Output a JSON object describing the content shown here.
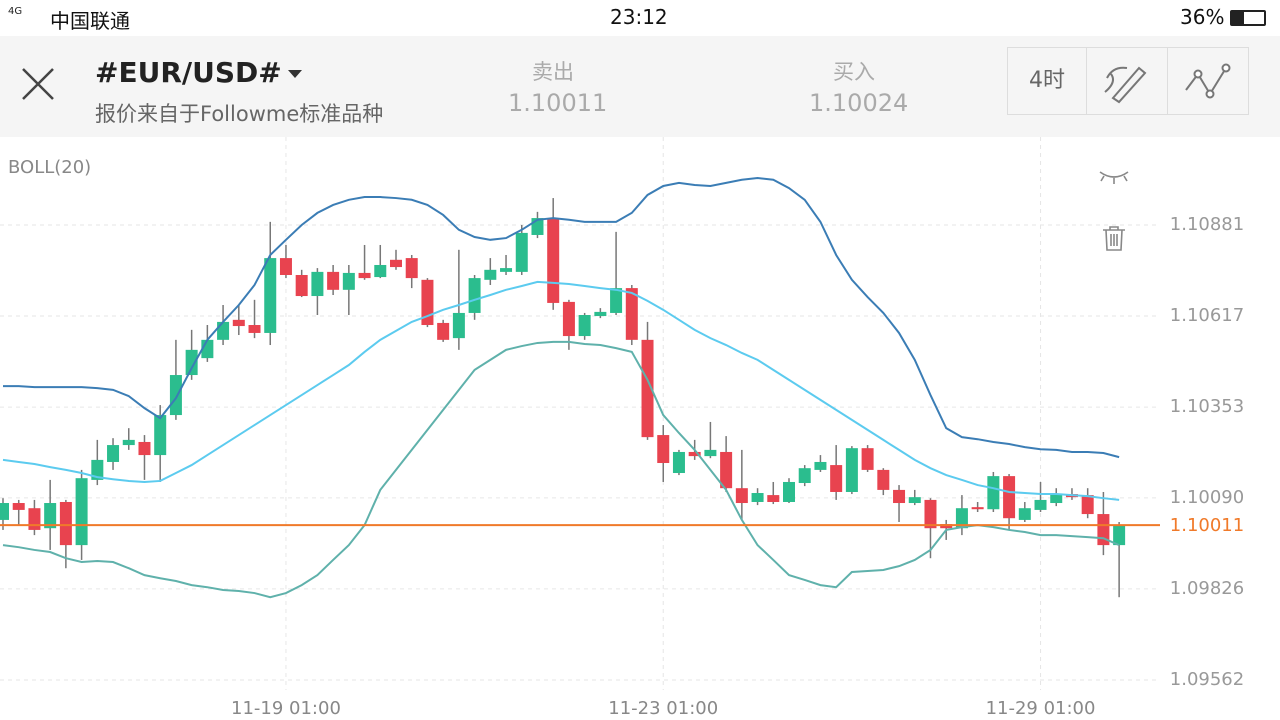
{
  "status": {
    "network": "4G",
    "carrier": "中国联通",
    "time": "23:12",
    "battery": "36%"
  },
  "header": {
    "symbol": "#EUR/USD#",
    "subtitle": "报价来自于Followme标准品种",
    "bid_label": "卖出",
    "bid": "1.10011",
    "ask_label": "买入",
    "ask": "1.10024",
    "timeframe": "4时"
  },
  "chart_data": {
    "type": "candlestick",
    "indicator": "BOLL(20)",
    "categories": [
      null,
      null,
      null,
      null,
      null,
      null,
      null,
      null,
      null,
      null,
      null,
      null,
      null,
      null,
      null,
      null,
      null,
      null,
      "11-19 01:00",
      null,
      null,
      null,
      null,
      null,
      null,
      null,
      null,
      null,
      null,
      null,
      null,
      null,
      null,
      null,
      null,
      null,
      null,
      null,
      null,
      null,
      null,
      null,
      "11-23 01:00",
      null,
      null,
      null,
      null,
      null,
      null,
      null,
      null,
      null,
      null,
      null,
      null,
      null,
      null,
      null,
      null,
      null,
      null,
      null,
      null,
      null,
      null,
      null,
      "11-29 01:00",
      null,
      null,
      null,
      null,
      null
    ],
    "open": [
      1.10026,
      1.10075,
      1.1006,
      1.10002,
      1.10078,
      1.09953,
      1.10142,
      1.10194,
      1.10243,
      1.10252,
      1.10214,
      1.1033,
      1.10446,
      1.10495,
      1.10548,
      1.10606,
      1.10591,
      1.10568,
      1.10785,
      1.10736,
      1.10675,
      1.10745,
      1.10693,
      1.10742,
      1.1073,
      1.1078,
      1.10785,
      1.10722,
      1.10597,
      1.10553,
      1.10626,
      1.10722,
      1.10745,
      1.10745,
      1.10852,
      1.10901,
      1.10658,
      1.10559,
      1.10617,
      1.10626,
      1.10698,
      1.10548,
      1.10272,
      1.10162,
      1.10223,
      1.10211,
      1.10223,
      1.10118,
      1.10078,
      1.10098,
      1.10078,
      1.10133,
      1.10171,
      1.10185,
      1.10107,
      1.10234,
      1.10171,
      1.10113,
      1.10075,
      1.10084,
      1.10014,
      1.10002,
      1.10063,
      1.10057,
      1.10153,
      1.10026,
      1.10055,
      1.10075,
      1.10101,
      1.10098,
      1.10043,
      1.09953
    ],
    "high": [
      1.10089,
      1.10084,
      1.10084,
      1.10142,
      1.10084,
      1.10171,
      1.10258,
      1.10263,
      1.10292,
      1.10272,
      1.10359,
      1.10548,
      1.10577,
      1.10591,
      1.10649,
      1.10649,
      1.10664,
      1.1089,
      1.10823,
      1.10751,
      1.10756,
      1.10765,
      1.10765,
      1.10823,
      1.10823,
      1.10809,
      1.10794,
      1.10727,
      1.10606,
      1.10809,
      1.10736,
      1.10785,
      1.10794,
      1.10881,
      1.10919,
      1.10959,
      1.10664,
      1.10626,
      1.1064,
      1.10861,
      1.10707,
      1.106,
      1.10301,
      1.10229,
      1.10258,
      1.1031,
      1.10269,
      1.10229,
      1.10118,
      1.10136,
      1.10147,
      1.10185,
      1.10214,
      1.10243,
      1.1024,
      1.10243,
      1.10176,
      1.10127,
      1.10113,
      1.10089,
      1.10026,
      1.10098,
      1.10078,
      1.10165,
      1.10159,
      1.10078,
      1.10136,
      1.10118,
      1.10118,
      1.10118,
      1.10107,
      1.1002
    ],
    "low": [
      1.09997,
      1.10011,
      1.09982,
      1.09939,
      1.09886,
      1.0991,
      1.10127,
      1.10171,
      1.10229,
      1.10142,
      1.10136,
      1.10316,
      1.10432,
      1.10484,
      1.10533,
      1.10562,
      1.10553,
      1.10533,
      1.10727,
      1.10672,
      1.1062,
      1.10678,
      1.1062,
      1.10722,
      1.10727,
      1.10751,
      1.10698,
      1.10585,
      1.10542,
      1.10519,
      1.10606,
      1.10707,
      1.10736,
      1.10736,
      1.10843,
      1.10635,
      1.10519,
      1.10548,
      1.10611,
      1.1062,
      1.10533,
      1.10258,
      1.10136,
      1.10156,
      1.102,
      1.10205,
      1.10107,
      1.10026,
      1.10069,
      1.10072,
      1.10075,
      1.10124,
      1.10165,
      1.10084,
      1.10101,
      1.10165,
      1.10098,
      1.1002,
      1.10069,
      1.09915,
      1.09968,
      1.09982,
      1.10049,
      1.10049,
      1.09997,
      1.1002,
      1.10049,
      1.10066,
      1.10084,
      1.10031,
      1.09924,
      1.09802
    ],
    "close": [
      1.10075,
      1.10055,
      1.09997,
      1.10075,
      1.09953,
      1.10147,
      1.102,
      1.10243,
      1.10258,
      1.10214,
      1.1033,
      1.10446,
      1.10519,
      1.10548,
      1.106,
      1.10588,
      1.10568,
      1.10785,
      1.10736,
      1.10675,
      1.10745,
      1.10693,
      1.10742,
      1.10727,
      1.10765,
      1.10759,
      1.10727,
      1.10591,
      1.10548,
      1.10626,
      1.10727,
      1.10751,
      1.10756,
      1.10858,
      1.10901,
      1.10655,
      1.10559,
      1.1062,
      1.10629,
      1.10698,
      1.10548,
      1.10266,
      1.10191,
      1.10223,
      1.10211,
      1.10229,
      1.10118,
      1.10075,
      1.10104,
      1.10078,
      1.10136,
      1.10176,
      1.10194,
      1.10107,
      1.10234,
      1.10171,
      1.10113,
      1.10075,
      1.10092,
      1.10002,
      1.10002,
      1.1006,
      1.10057,
      1.10153,
      1.10031,
      1.1006,
      1.10084,
      1.10101,
      1.10092,
      1.10043,
      1.09953,
      1.10011
    ],
    "up_color": "#2bbd8e",
    "down_color": "#e8434f",
    "series": [
      {
        "color": "#3b7db5",
        "values": [
          1.10414,
          1.10414,
          1.10411,
          1.10411,
          1.10411,
          1.10411,
          1.10408,
          1.10403,
          1.10385,
          1.1035,
          1.10321,
          1.10379,
          1.10466,
          1.10548,
          1.106,
          1.10649,
          1.10707,
          1.10794,
          1.10838,
          1.10881,
          1.10916,
          1.10939,
          1.10954,
          1.10962,
          1.10962,
          1.10959,
          1.10954,
          1.10939,
          1.1091,
          1.10867,
          1.10846,
          1.10838,
          1.10843,
          1.10867,
          1.10896,
          1.10901,
          1.10896,
          1.1089,
          1.1089,
          1.1089,
          1.10916,
          1.10968,
          1.10994,
          1.11003,
          1.10997,
          1.10994,
          1.11003,
          1.11012,
          1.11017,
          1.11012,
          1.10988,
          1.10954,
          1.1089,
          1.10794,
          1.10722,
          1.10672,
          1.10626,
          1.10568,
          1.1049,
          1.10388,
          1.10292,
          1.10266,
          1.1026,
          1.10252,
          1.10246,
          1.10237,
          1.10231,
          1.10229,
          1.10223,
          1.10223,
          1.1022,
          1.10208
        ]
      },
      {
        "color": "#5ccbef",
        "values": [
          1.102,
          1.10194,
          1.10188,
          1.10179,
          1.10171,
          1.10162,
          1.1015,
          1.10144,
          1.10139,
          1.10136,
          1.10139,
          1.10162,
          1.10185,
          1.10214,
          1.10243,
          1.10272,
          1.10301,
          1.1033,
          1.10359,
          1.10388,
          1.10417,
          1.10446,
          1.10475,
          1.10513,
          1.10548,
          1.10574,
          1.106,
          1.10617,
          1.10635,
          1.10649,
          1.10664,
          1.10678,
          1.10693,
          1.10704,
          1.10716,
          1.10713,
          1.1071,
          1.10704,
          1.10698,
          1.10693,
          1.10684,
          1.10661,
          1.10635,
          1.10606,
          1.10577,
          1.10553,
          1.10533,
          1.1051,
          1.1049,
          1.10461,
          1.10432,
          1.10403,
          1.10374,
          1.10345,
          1.10316,
          1.10287,
          1.10258,
          1.10229,
          1.102,
          1.10176,
          1.10156,
          1.10142,
          1.10127,
          1.10118,
          1.10107,
          1.10104,
          1.10101,
          1.10101,
          1.10098,
          1.10095,
          1.10089,
          1.10084
        ]
      },
      {
        "color": "#5fb1ab",
        "values": [
          1.09953,
          1.09947,
          1.09939,
          1.09933,
          1.09915,
          1.09904,
          1.09907,
          1.09904,
          1.09886,
          1.09866,
          1.09857,
          1.09849,
          1.09837,
          1.09831,
          1.09823,
          1.0982,
          1.09814,
          1.09802,
          1.09814,
          1.09837,
          1.09866,
          1.0991,
          1.09953,
          1.10011,
          1.10113,
          1.10171,
          1.10229,
          1.10287,
          1.10345,
          1.10403,
          1.10461,
          1.1049,
          1.10519,
          1.1053,
          1.10539,
          1.10542,
          1.10542,
          1.10536,
          1.10533,
          1.10524,
          1.10513,
          1.10432,
          1.1033,
          1.10278,
          1.10229,
          1.10171,
          1.10113,
          1.10026,
          1.09953,
          1.0991,
          1.09866,
          1.09852,
          1.09837,
          1.09831,
          1.09875,
          1.09878,
          1.09881,
          1.09892,
          1.0991,
          1.09939,
          1.09997,
          1.10005,
          1.10011,
          1.10005,
          1.09997,
          1.09991,
          1.09982,
          1.09982,
          1.09979,
          1.09976,
          1.09973,
          1.09953
        ]
      }
    ],
    "current_price": 1.10011,
    "current_price_color": "#f07a2a",
    "ylim": [
      1.09533,
      1.11136
    ],
    "yticks": [
      1.10881,
      1.10617,
      1.10353,
      {
        "value": 1.1009,
        "label": "1.10090"
      },
      1.09826,
      1.09562
    ],
    "grid": true
  }
}
